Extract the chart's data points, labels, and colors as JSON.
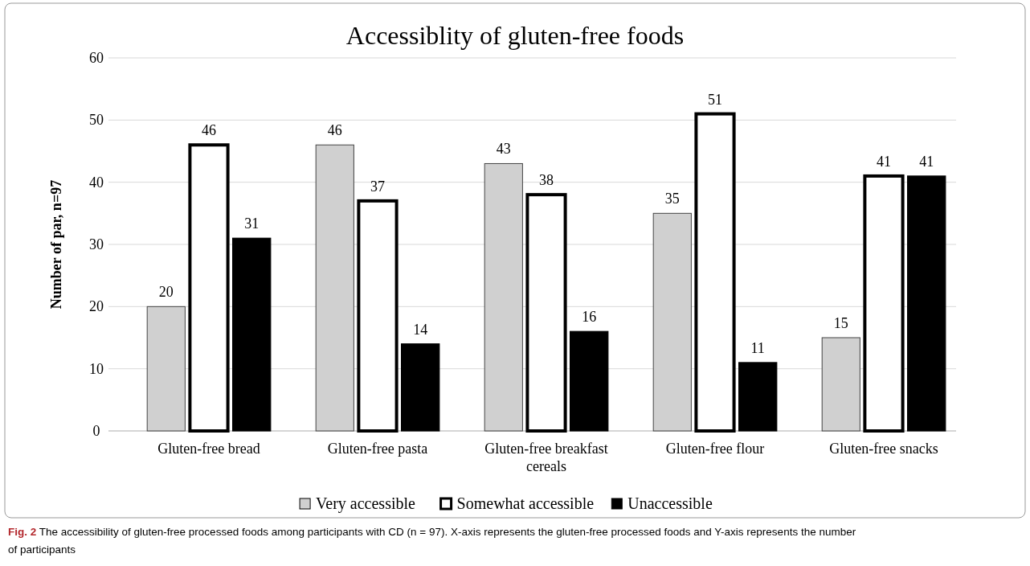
{
  "chart_data": {
    "type": "bar",
    "title": "Accessiblity of gluten-free foods",
    "ylabel": "Number of par, n=97",
    "categories": [
      "Gluten-free bread",
      "Gluten-free pasta",
      "Gluten-free breakfast cereals",
      "Gluten-free flour",
      "Gluten-free snacks"
    ],
    "series": [
      {
        "name": "Very accessible",
        "color": "#d0d0d0",
        "values": [
          20,
          46,
          43,
          35,
          15
        ]
      },
      {
        "name": "Somewhat accessible",
        "color": "#ffffff",
        "values": [
          46,
          37,
          38,
          51,
          41
        ]
      },
      {
        "name": "Unaccessible",
        "color": "#000000",
        "values": [
          31,
          14,
          16,
          11,
          41
        ]
      }
    ],
    "ylim": [
      0,
      60
    ],
    "yticks": [
      0,
      10,
      20,
      30,
      40,
      50,
      60
    ],
    "grid": "y",
    "legend": "bottom",
    "data_labels": true,
    "annotations": [
      "Fig. 2",
      "The accessibility of gluten-free processed foods among participants with CD (n = 97). X-axis represents the gluten-free processed foods and Y-axis represents the number of participants"
    ]
  }
}
